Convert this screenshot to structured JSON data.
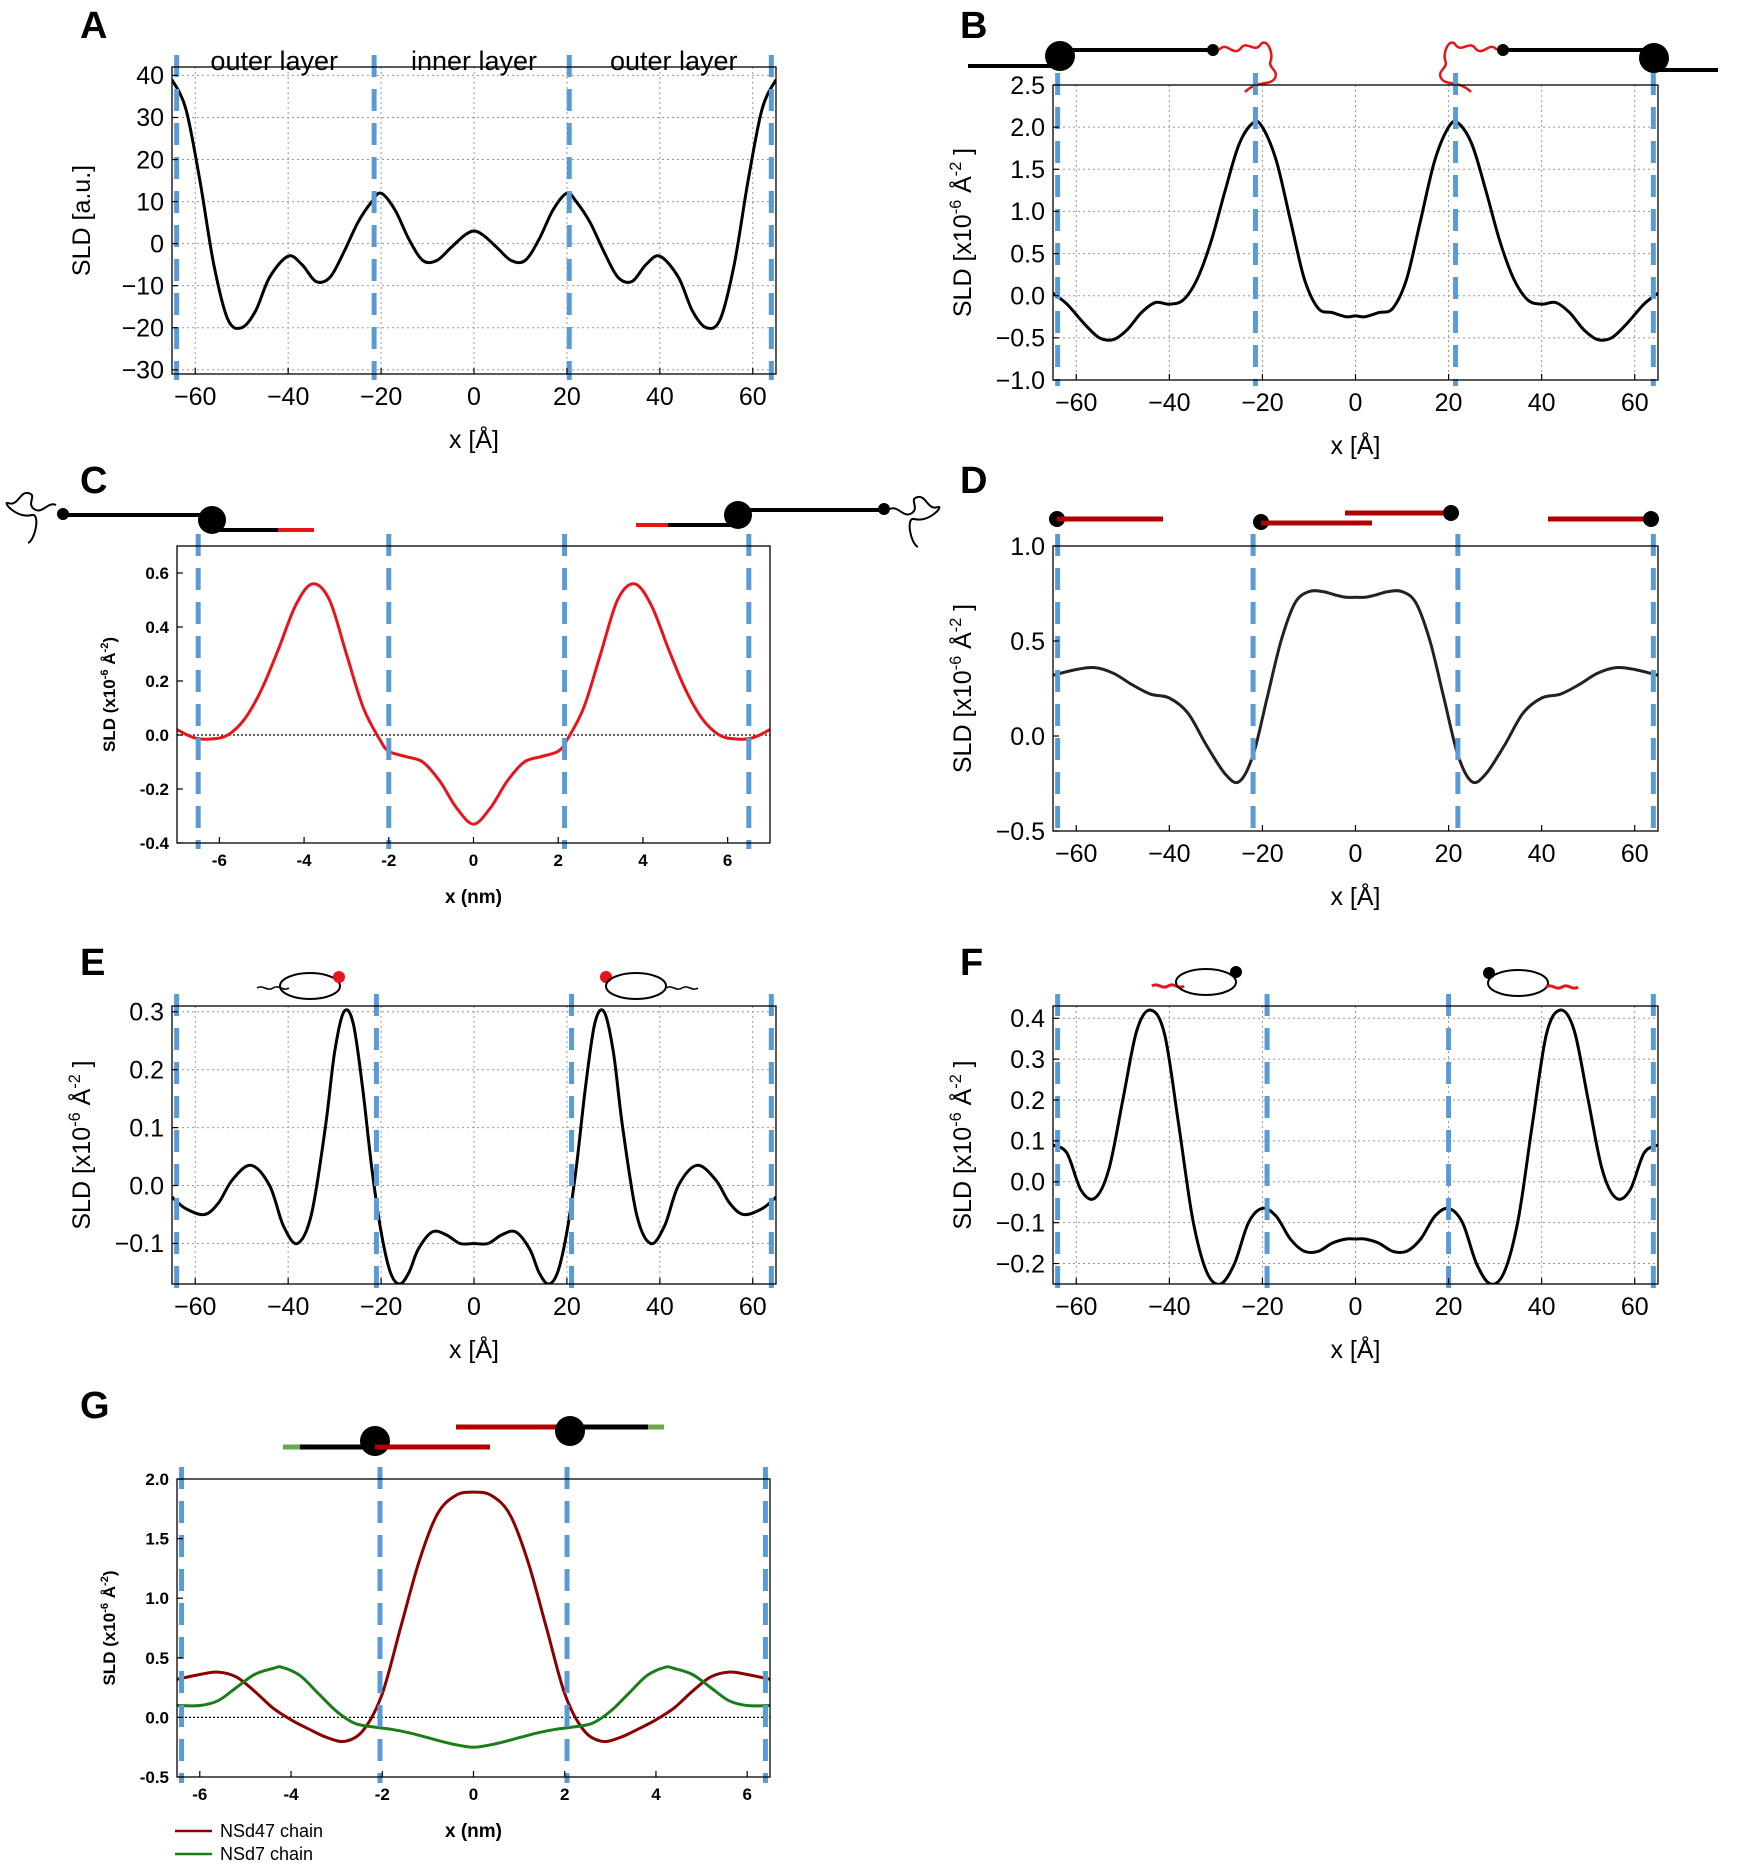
{
  "colors": {
    "guide": "#5b9bd5",
    "black_curve": "#000000",
    "red_curve": "#e8141a",
    "dark_red_curve": "#8b0000",
    "green_curve": "#1a7d1a",
    "cartoon_red": "#b00000",
    "cartoon_green": "#6aa84f"
  },
  "chart_data": [
    {
      "id": "A",
      "panel_label": "A",
      "type": "line",
      "xlabel": "x [Å]",
      "ylabel": "SLD [a.u.]",
      "xlim": [
        -65,
        65
      ],
      "ylim": [
        -31,
        42
      ],
      "xticks": [
        -60,
        -40,
        -20,
        0,
        20,
        40,
        60
      ],
      "xtick_labels": [
        "−60",
        "−40",
        "−20",
        "0",
        "20",
        "40",
        "60"
      ],
      "yticks": [
        -30,
        -20,
        -10,
        0,
        10,
        20,
        30,
        40
      ],
      "ytick_labels": [
        "−30",
        "−20",
        "−10",
        "0",
        "10",
        "20",
        "30",
        "40"
      ],
      "grid": true,
      "guides": [
        -64,
        -21.5,
        20.5,
        64
      ],
      "region_labels": [
        {
          "x": -43,
          "text": "outer layer"
        },
        {
          "x": 0,
          "text": "inner layer"
        },
        {
          "x": 43,
          "text": "outer layer"
        }
      ],
      "series": [
        {
          "name": "SLD",
          "color": "black",
          "x": [
            -65,
            -62,
            -59,
            -56,
            -53,
            -50,
            -47,
            -44,
            -40,
            -37,
            -34,
            -31,
            -28,
            -25,
            -22,
            -20,
            -17,
            -14,
            -11,
            -8,
            -5,
            -2,
            0,
            2,
            5,
            8,
            11,
            14,
            17,
            20,
            22,
            25,
            28,
            31,
            34,
            37,
            40,
            44,
            47,
            50,
            53,
            56,
            59,
            62,
            65
          ],
          "values": [
            39,
            32,
            15,
            -5,
            -18,
            -20,
            -16,
            -8,
            -3,
            -5,
            -9,
            -8,
            -2,
            5,
            10,
            12,
            8,
            1,
            -4,
            -4,
            -1,
            2,
            3,
            2,
            -1,
            -4,
            -4,
            1,
            8,
            12,
            10,
            5,
            -2,
            -8,
            -9,
            -5,
            -3,
            -8,
            -16,
            -20,
            -18,
            -5,
            15,
            32,
            39
          ]
        }
      ]
    },
    {
      "id": "B",
      "panel_label": "B",
      "type": "line",
      "xlabel": "x [Å]",
      "ylabel": "SLD [x10",
      "ylabel_sup": "-6",
      "ylabel_tail": " Å",
      "ylabel_sup2": "-2",
      "ylabel_end": " ]",
      "xlim": [
        -65,
        65
      ],
      "ylim": [
        -1.0,
        2.5
      ],
      "xticks": [
        -60,
        -40,
        -20,
        0,
        20,
        40,
        60
      ],
      "xtick_labels": [
        "−60",
        "−40",
        "−20",
        "0",
        "20",
        "40",
        "60"
      ],
      "yticks": [
        -1.0,
        -0.5,
        0.0,
        0.5,
        1.0,
        1.5,
        2.0,
        2.5
      ],
      "ytick_labels": [
        "−1.0",
        "−0.5",
        "0.0",
        "0.5",
        "1.0",
        "1.5",
        "2.0",
        "2.5"
      ],
      "grid": true,
      "guides": [
        -64,
        -21.5,
        21.5,
        64
      ],
      "series": [
        {
          "name": "SLD",
          "color": "black",
          "x": [
            -65,
            -62,
            -58,
            -55,
            -52,
            -49,
            -46,
            -43,
            -40,
            -37,
            -34,
            -31,
            -28,
            -25,
            -22,
            -20,
            -17,
            -14,
            -11,
            -8,
            -5,
            -2,
            0,
            2,
            5,
            8,
            11,
            14,
            17,
            20,
            22,
            25,
            28,
            31,
            34,
            37,
            40,
            43,
            46,
            49,
            52,
            55,
            58,
            62,
            65
          ],
          "values": [
            0.03,
            -0.1,
            -0.35,
            -0.5,
            -0.52,
            -0.4,
            -0.2,
            -0.08,
            -0.1,
            -0.05,
            0.2,
            0.65,
            1.25,
            1.8,
            2.05,
            2.0,
            1.6,
            0.9,
            0.2,
            -0.15,
            -0.2,
            -0.25,
            -0.24,
            -0.25,
            -0.2,
            -0.15,
            0.2,
            0.9,
            1.6,
            2.0,
            2.05,
            1.8,
            1.25,
            0.65,
            0.2,
            -0.05,
            -0.1,
            -0.08,
            -0.2,
            -0.4,
            -0.52,
            -0.5,
            -0.35,
            -0.1,
            0.03
          ]
        }
      ]
    },
    {
      "id": "C",
      "panel_label": "C",
      "type": "line",
      "xlabel": "x (nm)",
      "ylabel": "SLD (x10",
      "ylabel_sup": "-6",
      "ylabel_tail": " Å",
      "ylabel_sup2": "-2",
      "ylabel_end": ")",
      "xlim": [
        -7,
        7
      ],
      "ylim": [
        -0.4,
        0.7
      ],
      "xticks": [
        -6,
        -4,
        -2,
        0,
        2,
        4,
        6
      ],
      "xtick_labels": [
        "-6",
        "-4",
        "-2",
        "0",
        "2",
        "4",
        "6"
      ],
      "yticks": [
        -0.4,
        -0.2,
        0.0,
        0.2,
        0.4,
        0.6
      ],
      "ytick_labels": [
        "-0.4",
        "-0.2",
        "0.0",
        "0.2",
        "0.4",
        "0.6"
      ],
      "grid": false,
      "zero_line": true,
      "guides": [
        -6.5,
        -2.0,
        2.15,
        6.5
      ],
      "series": [
        {
          "name": "SLD",
          "color": "red",
          "x": [
            -7,
            -6.6,
            -6.2,
            -5.8,
            -5.4,
            -5.0,
            -4.6,
            -4.2,
            -3.8,
            -3.4,
            -3.0,
            -2.6,
            -2.2,
            -2.0,
            -1.6,
            -1.2,
            -0.8,
            -0.4,
            0,
            0.4,
            0.8,
            1.2,
            1.6,
            2.0,
            2.2,
            2.6,
            3.0,
            3.4,
            3.8,
            4.2,
            4.6,
            5.0,
            5.4,
            5.8,
            6.2,
            6.6,
            7
          ],
          "values": [
            0.02,
            -0.01,
            -0.015,
            0.0,
            0.06,
            0.17,
            0.32,
            0.48,
            0.56,
            0.5,
            0.3,
            0.1,
            -0.02,
            -0.06,
            -0.08,
            -0.1,
            -0.17,
            -0.27,
            -0.33,
            -0.27,
            -0.17,
            -0.1,
            -0.08,
            -0.06,
            -0.02,
            0.1,
            0.3,
            0.5,
            0.56,
            0.48,
            0.32,
            0.17,
            0.06,
            0.0,
            -0.015,
            -0.01,
            0.02
          ]
        }
      ]
    },
    {
      "id": "D",
      "panel_label": "D",
      "type": "line",
      "xlabel": "x [Å]",
      "ylabel": "SLD [x10",
      "ylabel_sup": "-6",
      "ylabel_tail": " Å",
      "ylabel_sup2": "-2",
      "ylabel_end": " ]",
      "xlim": [
        -65,
        65
      ],
      "ylim": [
        -0.5,
        1.0
      ],
      "xticks": [
        -60,
        -40,
        -20,
        0,
        20,
        40,
        60
      ],
      "xtick_labels": [
        "−60",
        "−40",
        "−20",
        "0",
        "20",
        "40",
        "60"
      ],
      "yticks": [
        -0.5,
        0.0,
        0.5,
        1.0
      ],
      "ytick_labels": [
        "−0.5",
        "0.0",
        "0.5",
        "1.0"
      ],
      "grid": false,
      "guides": [
        -64,
        -22,
        22,
        64
      ],
      "series": [
        {
          "name": "SLD",
          "color": "#222222",
          "x": [
            -65,
            -60,
            -56,
            -52,
            -48,
            -44,
            -40,
            -36,
            -32,
            -28,
            -25,
            -22,
            -19,
            -16,
            -13,
            -10,
            -7,
            -4,
            -2,
            0,
            2,
            4,
            7,
            10,
            13,
            16,
            19,
            22,
            25,
            28,
            32,
            36,
            40,
            44,
            48,
            52,
            56,
            60,
            65
          ],
          "values": [
            0.32,
            0.35,
            0.36,
            0.33,
            0.27,
            0.22,
            0.2,
            0.12,
            -0.05,
            -0.2,
            -0.24,
            -0.1,
            0.2,
            0.5,
            0.7,
            0.76,
            0.76,
            0.74,
            0.73,
            0.73,
            0.73,
            0.74,
            0.76,
            0.76,
            0.7,
            0.5,
            0.2,
            -0.1,
            -0.24,
            -0.2,
            -0.05,
            0.12,
            0.2,
            0.22,
            0.27,
            0.33,
            0.36,
            0.35,
            0.32
          ]
        }
      ]
    },
    {
      "id": "E",
      "panel_label": "E",
      "type": "line",
      "xlabel": "x [Å]",
      "ylabel": "SLD [x10",
      "ylabel_sup": "-6",
      "ylabel_tail": " Å",
      "ylabel_sup2": "-2",
      "ylabel_end": " ]",
      "xlim": [
        -65,
        65
      ],
      "ylim": [
        -0.17,
        0.31
      ],
      "xticks": [
        -60,
        -40,
        -20,
        0,
        20,
        40,
        60
      ],
      "xtick_labels": [
        "−60",
        "−40",
        "−20",
        "0",
        "20",
        "40",
        "60"
      ],
      "yticks": [
        -0.1,
        0.0,
        0.1,
        0.2,
        0.3
      ],
      "ytick_labels": [
        "−0.1",
        "0.0",
        "0.1",
        "0.2",
        "0.3"
      ],
      "grid": true,
      "guides": [
        -64,
        -21,
        21,
        64
      ],
      "series": [
        {
          "name": "SLD",
          "color": "black",
          "x": [
            -65,
            -62,
            -58,
            -55,
            -52,
            -48,
            -44,
            -41,
            -38,
            -35,
            -32,
            -30,
            -28,
            -26,
            -24,
            -22,
            -20,
            -18,
            -16,
            -14,
            -12,
            -9,
            -6,
            -3,
            0,
            3,
            6,
            9,
            12,
            14,
            16,
            18,
            20,
            22,
            24,
            26,
            28,
            30,
            32,
            35,
            38,
            41,
            44,
            48,
            52,
            55,
            58,
            62,
            65
          ],
          "values": [
            -0.02,
            -0.04,
            -0.05,
            -0.03,
            0.01,
            0.035,
            0.0,
            -0.07,
            -0.1,
            -0.05,
            0.1,
            0.23,
            0.3,
            0.28,
            0.17,
            0.03,
            -0.08,
            -0.15,
            -0.17,
            -0.15,
            -0.11,
            -0.08,
            -0.085,
            -0.1,
            -0.1,
            -0.1,
            -0.085,
            -0.08,
            -0.11,
            -0.15,
            -0.17,
            -0.15,
            -0.08,
            0.03,
            0.17,
            0.28,
            0.3,
            0.23,
            0.1,
            -0.05,
            -0.1,
            -0.07,
            0.0,
            0.035,
            0.01,
            -0.03,
            -0.05,
            -0.04,
            -0.02
          ]
        }
      ]
    },
    {
      "id": "F",
      "panel_label": "F",
      "type": "line",
      "xlabel": "x [Å]",
      "ylabel": "SLD [x10",
      "ylabel_sup": "-6",
      "ylabel_tail": " Å",
      "ylabel_sup2": "-2",
      "ylabel_end": " ]",
      "xlim": [
        -65,
        65
      ],
      "ylim": [
        -0.25,
        0.43
      ],
      "xticks": [
        -60,
        -40,
        -20,
        0,
        20,
        40,
        60
      ],
      "xtick_labels": [
        "−60",
        "−40",
        "−20",
        "0",
        "20",
        "40",
        "60"
      ],
      "yticks": [
        -0.2,
        -0.1,
        0.0,
        0.1,
        0.2,
        0.3,
        0.4
      ],
      "ytick_labels": [
        "−0.2",
        "−0.1",
        "0.0",
        "0.1",
        "0.2",
        "0.3",
        "0.4"
      ],
      "grid": true,
      "guides": [
        -64,
        -19,
        20,
        64
      ],
      "series": [
        {
          "name": "SLD",
          "color": "black",
          "x": [
            -65,
            -62,
            -59,
            -56,
            -53,
            -50,
            -47,
            -44,
            -41,
            -38,
            -35,
            -32,
            -29,
            -26,
            -23,
            -20,
            -17,
            -14,
            -11,
            -8,
            -5,
            -2,
            0,
            2,
            5,
            8,
            11,
            14,
            17,
            20,
            23,
            26,
            29,
            32,
            35,
            38,
            41,
            44,
            47,
            50,
            53,
            56,
            59,
            62,
            65
          ],
          "values": [
            0.09,
            0.07,
            -0.02,
            -0.04,
            0.03,
            0.2,
            0.37,
            0.42,
            0.36,
            0.14,
            -0.09,
            -0.22,
            -0.25,
            -0.2,
            -0.1,
            -0.065,
            -0.085,
            -0.14,
            -0.17,
            -0.17,
            -0.15,
            -0.14,
            -0.14,
            -0.14,
            -0.15,
            -0.17,
            -0.17,
            -0.14,
            -0.085,
            -0.065,
            -0.1,
            -0.2,
            -0.25,
            -0.22,
            -0.09,
            0.14,
            0.36,
            0.42,
            0.37,
            0.2,
            0.03,
            -0.04,
            -0.02,
            0.07,
            0.09
          ]
        }
      ]
    },
    {
      "id": "G",
      "panel_label": "G",
      "type": "line",
      "xlabel": "x (nm)",
      "ylabel": "SLD (x10",
      "ylabel_sup": "-6",
      "ylabel_tail": " Å",
      "ylabel_sup2": "-2",
      "ylabel_end": ")",
      "xlim": [
        -6.5,
        6.5
      ],
      "ylim": [
        -0.5,
        2.0
      ],
      "xticks": [
        -6,
        -4,
        -2,
        0,
        2,
        4,
        6
      ],
      "xtick_labels": [
        "-6",
        "-4",
        "-2",
        "0",
        "2",
        "4",
        "6"
      ],
      "yticks": [
        -0.5,
        0.0,
        0.5,
        1.0,
        1.5,
        2.0
      ],
      "ytick_labels": [
        "-0.5",
        "0.0",
        "0.5",
        "1.0",
        "1.5",
        "2.0"
      ],
      "grid": false,
      "zero_line": true,
      "guides": [
        -6.4,
        -2.05,
        2.05,
        6.4
      ],
      "legend_position": "bottom-left",
      "series": [
        {
          "name": "NSd47 chain",
          "color": "dark_red",
          "x": [
            -6.5,
            -6.0,
            -5.6,
            -5.2,
            -4.8,
            -4.4,
            -4.0,
            -3.6,
            -3.2,
            -2.8,
            -2.4,
            -2.0,
            -1.6,
            -1.2,
            -0.8,
            -0.4,
            0,
            0.4,
            0.8,
            1.2,
            1.6,
            2.0,
            2.4,
            2.8,
            3.2,
            3.6,
            4.0,
            4.4,
            4.8,
            5.2,
            5.6,
            6.0,
            6.5
          ],
          "values": [
            0.32,
            0.36,
            0.38,
            0.34,
            0.22,
            0.08,
            -0.02,
            -0.1,
            -0.17,
            -0.2,
            -0.1,
            0.2,
            0.75,
            1.3,
            1.7,
            1.86,
            1.89,
            1.86,
            1.7,
            1.3,
            0.75,
            0.2,
            -0.1,
            -0.2,
            -0.17,
            -0.1,
            -0.02,
            0.08,
            0.22,
            0.34,
            0.38,
            0.36,
            0.32
          ]
        },
        {
          "name": "NSd7 chain",
          "color": "green",
          "x": [
            -6.5,
            -6.0,
            -5.6,
            -5.2,
            -4.8,
            -4.4,
            -4.2,
            -3.8,
            -3.4,
            -3.0,
            -2.6,
            -2.2,
            -1.8,
            -1.4,
            -1.0,
            -0.5,
            0,
            0.5,
            1.0,
            1.4,
            1.8,
            2.2,
            2.6,
            3.0,
            3.4,
            3.8,
            4.2,
            4.4,
            4.8,
            5.2,
            5.6,
            6.0,
            6.5
          ],
          "values": [
            0.1,
            0.1,
            0.14,
            0.25,
            0.36,
            0.41,
            0.42,
            0.35,
            0.2,
            0.05,
            -0.05,
            -0.08,
            -0.1,
            -0.13,
            -0.17,
            -0.22,
            -0.25,
            -0.22,
            -0.17,
            -0.13,
            -0.1,
            -0.08,
            -0.05,
            0.05,
            0.2,
            0.35,
            0.42,
            0.41,
            0.36,
            0.25,
            0.14,
            0.1,
            0.1
          ]
        }
      ]
    }
  ]
}
